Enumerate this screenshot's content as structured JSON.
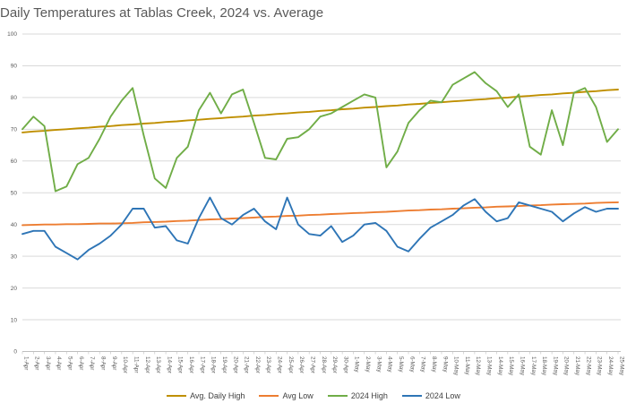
{
  "chart_data": {
    "type": "line",
    "title": "Daily Temperatures at Tablas Creek, 2024 vs. Average",
    "xlabel": "",
    "ylabel": "",
    "ylim": [
      0,
      100
    ],
    "ytick_step": 10,
    "grid": true,
    "legend_position": "bottom",
    "axis_colors": {
      "gridline": "#D9D9D9",
      "axis_line": "#BFBFBF",
      "tick": "#BFBFBF",
      "label_text": "#595959",
      "title_text": "#595959"
    },
    "categories": [
      "1-Apr",
      "2-Apr",
      "3-Apr",
      "4-Apr",
      "5-Apr",
      "6-Apr",
      "7-Apr",
      "8-Apr",
      "9-Apr",
      "10-Apr",
      "11-Apr",
      "12-Apr",
      "13-Apr",
      "14-Apr",
      "15-Apr",
      "16-Apr",
      "17-Apr",
      "18-Apr",
      "19-Apr",
      "20-Apr",
      "21-Apr",
      "22-Apr",
      "23-Apr",
      "24-Apr",
      "25-Apr",
      "26-Apr",
      "27-Apr",
      "28-Apr",
      "29-Apr",
      "30-Apr",
      "1-May",
      "2-May",
      "3-May",
      "4-May",
      "5-May",
      "6-May",
      "7-May",
      "8-May",
      "9-May",
      "10-May",
      "11-May",
      "12-May",
      "13-May",
      "14-May",
      "15-May",
      "16-May",
      "17-May",
      "18-May",
      "19-May",
      "20-May",
      "21-May",
      "22-May",
      "23-May",
      "24-May",
      "25-May"
    ],
    "series": [
      {
        "name": "Avg. Daily High",
        "color": "#BF8F00",
        "values": [
          69,
          69.3,
          69.5,
          69.8,
          70,
          70.3,
          70.5,
          70.8,
          71,
          71.3,
          71.5,
          71.8,
          72,
          72.3,
          72.5,
          72.8,
          73,
          73.3,
          73.5,
          73.8,
          74,
          74.3,
          74.5,
          74.8,
          75,
          75.3,
          75.5,
          75.8,
          76,
          76.3,
          76.5,
          76.8,
          77,
          77.3,
          77.5,
          77.8,
          78,
          78.3,
          78.5,
          78.8,
          79,
          79.3,
          79.5,
          79.8,
          80,
          80.3,
          80.5,
          80.8,
          81,
          81.3,
          81.5,
          81.8,
          82,
          82.3,
          82.5
        ]
      },
      {
        "name": "Avg Low",
        "color": "#ED7D31",
        "values": [
          39.8,
          39.9,
          40,
          40,
          40.1,
          40.1,
          40.2,
          40.3,
          40.3,
          40.4,
          40.5,
          40.7,
          40.8,
          40.9,
          41.1,
          41.2,
          41.4,
          41.6,
          41.7,
          41.9,
          42,
          42.2,
          42.4,
          42.5,
          42.7,
          42.8,
          43,
          43.1,
          43.3,
          43.4,
          43.6,
          43.7,
          43.9,
          44,
          44.2,
          44.4,
          44.5,
          44.7,
          44.8,
          45,
          45.1,
          45.3,
          45.4,
          45.6,
          45.7,
          45.8,
          46,
          46.1,
          46.3,
          46.4,
          46.5,
          46.6,
          46.8,
          46.9,
          47
        ]
      },
      {
        "name": "2024 High",
        "color": "#70AD47",
        "values": [
          70,
          74,
          71,
          50.5,
          52,
          59,
          61,
          67,
          74,
          79,
          83,
          68,
          54.5,
          51.5,
          61,
          64.5,
          76,
          81.5,
          75,
          81,
          82.5,
          72,
          61,
          60.5,
          67,
          67.5,
          70,
          74,
          75,
          77,
          79,
          81,
          80,
          58,
          63,
          72,
          76,
          79,
          78.5,
          84,
          86,
          88,
          84.5,
          82,
          77,
          81,
          64.5,
          62,
          76,
          65,
          81.5,
          83,
          77,
          66,
          70
        ]
      },
      {
        "name": "2024 Low",
        "color": "#2E75B6",
        "values": [
          37,
          38,
          38,
          33,
          31,
          29,
          32,
          34,
          36.5,
          40,
          45,
          45,
          39,
          39.5,
          35,
          34,
          42,
          48.5,
          42,
          40,
          43,
          45,
          41,
          38.5,
          48.5,
          40,
          37,
          36.5,
          39.5,
          34.5,
          36.5,
          40,
          40.5,
          38,
          33,
          31.5,
          35.5,
          39,
          41,
          43,
          46,
          48,
          44,
          41,
          42,
          47,
          46,
          45,
          44,
          41,
          43.5,
          45.5,
          44,
          45,
          45
        ]
      }
    ]
  }
}
